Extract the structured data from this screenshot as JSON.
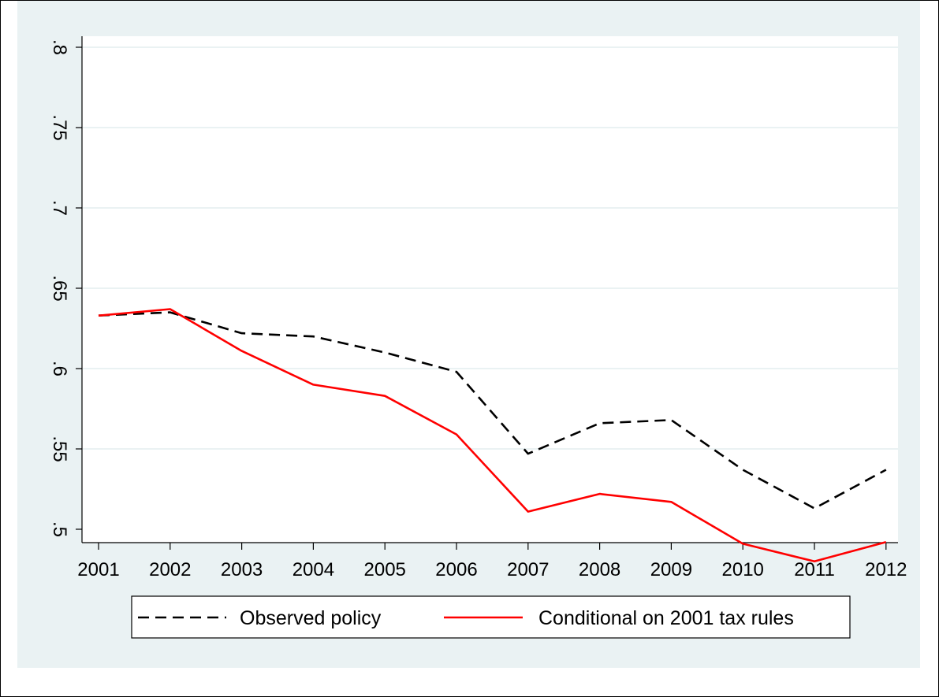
{
  "chart_data": {
    "type": "line",
    "title": "",
    "xlabel": "",
    "ylabel": "",
    "x": [
      2001,
      2002,
      2003,
      2004,
      2005,
      2006,
      2007,
      2008,
      2009,
      2010,
      2011,
      2012
    ],
    "xticks": [
      "2001",
      "2002",
      "2003",
      "2004",
      "2005",
      "2006",
      "2007",
      "2008",
      "2009",
      "2010",
      "2011",
      "2012"
    ],
    "yticks": [
      {
        "value": 0.5,
        "label": ".5"
      },
      {
        "value": 0.55,
        "label": ".55"
      },
      {
        "value": 0.6,
        "label": ".6"
      },
      {
        "value": 0.65,
        "label": ".65"
      },
      {
        "value": 0.7,
        "label": ".7"
      },
      {
        "value": 0.75,
        "label": ".75"
      },
      {
        "value": 0.8,
        "label": ".8"
      }
    ],
    "ylim": [
      0.5,
      0.8
    ],
    "grid": true,
    "legend_position": "bottom",
    "series": [
      {
        "name": "Observed policy",
        "color": "#000000",
        "style": "dashed",
        "values": [
          0.633,
          0.635,
          0.622,
          0.62,
          0.61,
          0.598,
          0.547,
          0.566,
          0.568,
          0.537,
          0.513,
          0.537
        ]
      },
      {
        "name": "Conditional on 2001 tax rules",
        "color": "#ff0000",
        "style": "solid",
        "values": [
          0.633,
          0.637,
          0.611,
          0.59,
          0.583,
          0.559,
          0.511,
          0.522,
          0.517,
          0.491,
          0.48,
          0.492
        ]
      }
    ]
  },
  "colors": {
    "panel_background": "#eaf2f3",
    "plot_background": "#ffffff",
    "grid": "#eaf2f3"
  }
}
